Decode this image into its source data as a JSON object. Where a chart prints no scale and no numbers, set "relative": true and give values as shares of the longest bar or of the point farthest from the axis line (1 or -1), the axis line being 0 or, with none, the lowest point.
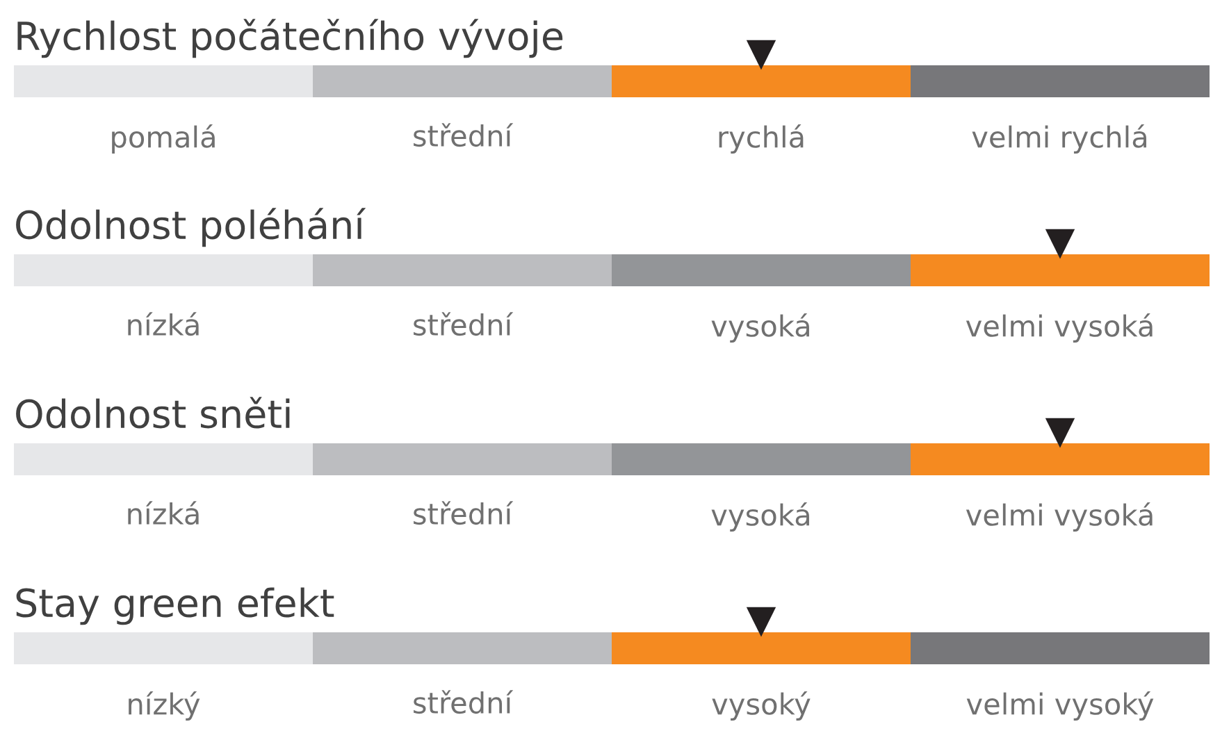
{
  "chart_data": [
    {
      "type": "bar",
      "relative": true,
      "title": "Rychlost počátečního vývoje",
      "categories": [
        "pomalá",
        "střední",
        "rychlá",
        "velmi rychlá"
      ],
      "values": [
        1,
        1,
        1,
        1
      ],
      "colors": [
        "#e6e7e9",
        "#bcbdc0",
        "#f58a20",
        "#77777a"
      ],
      "annotations": [
        {
          "text": "▼",
          "x": "rychlá",
          "y": 1
        }
      ]
    },
    {
      "type": "bar",
      "relative": true,
      "title": "Odolnost poléhání",
      "categories": [
        "nízká",
        "střední",
        "vysoká",
        "velmi vysoká"
      ],
      "values": [
        1,
        1,
        1,
        1
      ],
      "colors": [
        "#e6e7e9",
        "#bcbdc0",
        "#939598",
        "#f58a20"
      ],
      "annotations": [
        {
          "text": "▼",
          "x": "velmi vysoká",
          "y": 1
        }
      ]
    },
    {
      "type": "bar",
      "relative": true,
      "title": "Odolnost sněti",
      "categories": [
        "nízká",
        "střední",
        "vysoká",
        "velmi vysoká"
      ],
      "values": [
        1,
        1,
        1,
        1
      ],
      "colors": [
        "#e6e7e9",
        "#bcbdc0",
        "#939598",
        "#f58a20"
      ],
      "annotations": [
        {
          "text": "▼",
          "x": "velmi vysoká",
          "y": 1
        }
      ]
    },
    {
      "type": "bar",
      "relative": true,
      "title": "Stay green efekt",
      "categories": [
        "nízký",
        "střední",
        "vysoký",
        "velmi vysoký"
      ],
      "values": [
        1,
        1,
        1,
        1
      ],
      "colors": [
        "#e6e7e9",
        "#bcbdc0",
        "#f58a20",
        "#77777a"
      ],
      "annotations": [
        {
          "text": "▼",
          "x": "vysoký",
          "y": 1
        }
      ]
    }
  ]
}
